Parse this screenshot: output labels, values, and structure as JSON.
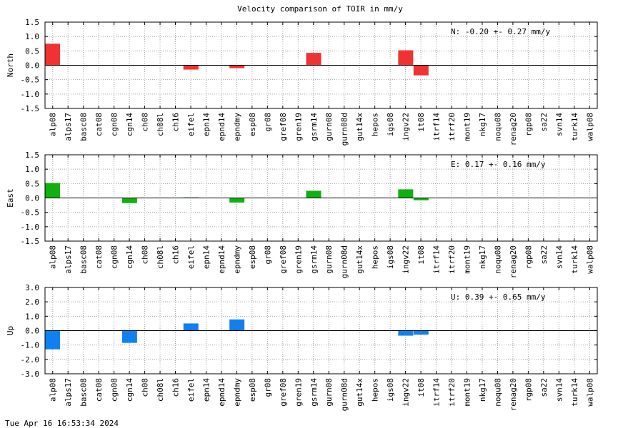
{
  "title": "Velocity comparison of TOIR in mm/y",
  "footer": "Tue Apr 16 16:53:34 2024",
  "colors": {
    "north": "#f03232",
    "east": "#10b010",
    "up": "#1080f0"
  },
  "chart_data": [
    {
      "type": "bar",
      "ylabel": "North",
      "ylim": [
        -1.5,
        1.5
      ],
      "yticks": [
        "1.5",
        "1.0",
        "0.5",
        "0.0",
        "-0.5",
        "-1.0",
        "-1.5"
      ],
      "ytick_values": [
        1.5,
        1.0,
        0.5,
        0.0,
        -0.5,
        -1.0,
        -1.5
      ],
      "stat": "N:  -0.20 +-  0.27 mm/y",
      "grid": true,
      "categories": [
        "alp08",
        "alps17",
        "basc08",
        "cat08",
        "cgn08",
        "cgn14",
        "ch08",
        "ch08l",
        "ch16",
        "eifel",
        "epn14",
        "epnd14",
        "epndmy",
        "esp08",
        "gr08",
        "gref08",
        "gren19",
        "gsrm14",
        "gurn08",
        "gurn08d",
        "gut14x",
        "hepos",
        "igs08",
        "ingv22",
        "it08",
        "itrf14",
        "itrf20",
        "mont19",
        "nkg17",
        "noqu08",
        "renag20",
        "rgp08",
        "sa22",
        "svn14",
        "turk14",
        "walp08"
      ],
      "values": [
        0.75,
        0,
        0,
        0,
        0,
        0,
        0,
        0,
        0,
        -0.15,
        0,
        0,
        -0.1,
        0,
        0,
        0,
        0,
        0.43,
        0,
        0,
        0,
        0,
        0,
        0.52,
        -0.35,
        0,
        0,
        0,
        0,
        0,
        0,
        0,
        0,
        0,
        0,
        0
      ]
    },
    {
      "type": "bar",
      "ylabel": "East",
      "ylim": [
        -1.5,
        1.5
      ],
      "yticks": [
        "1.5",
        "1.0",
        "0.5",
        "0.0",
        "-0.5",
        "-1.0",
        "-1.5"
      ],
      "ytick_values": [
        1.5,
        1.0,
        0.5,
        0.0,
        -0.5,
        -1.0,
        -1.5
      ],
      "stat": "E:   0.17 +-  0.16 mm/y",
      "grid": true,
      "categories": [
        "alp08",
        "alps17",
        "basc08",
        "cat08",
        "cgn08",
        "cgn14",
        "ch08",
        "ch08l",
        "ch16",
        "eifel",
        "epn14",
        "epnd14",
        "epndmy",
        "esp08",
        "gr08",
        "gref08",
        "gren19",
        "gsrm14",
        "gurn08",
        "gurn08d",
        "gut14x",
        "hepos",
        "igs08",
        "ingv22",
        "it08",
        "itrf14",
        "itrf20",
        "mont19",
        "nkg17",
        "noqu08",
        "renag20",
        "rgp08",
        "sa22",
        "svn14",
        "turk14",
        "walp08"
      ],
      "values": [
        0.52,
        0,
        0,
        0,
        0,
        -0.18,
        0,
        0,
        0,
        0.02,
        0,
        0,
        -0.16,
        0,
        0,
        0,
        0,
        0.25,
        0,
        0,
        0,
        0,
        0,
        0.3,
        -0.08,
        0,
        0,
        0,
        0,
        0,
        0,
        0,
        0,
        0,
        0,
        0
      ]
    },
    {
      "type": "bar",
      "ylabel": "Up",
      "ylim": [
        -3.0,
        3.0
      ],
      "yticks": [
        "3.0",
        "2.0",
        "1.0",
        "0.0",
        "-1.0",
        "-2.0",
        "-3.0"
      ],
      "ytick_values": [
        3.0,
        2.0,
        1.0,
        0.0,
        -1.0,
        -2.0,
        -3.0
      ],
      "stat": "U:   0.39 +-  0.65 mm/y",
      "grid": true,
      "categories": [
        "alp08",
        "alps17",
        "basc08",
        "cat08",
        "cgn08",
        "cgn14",
        "ch08",
        "ch08l",
        "ch16",
        "eifel",
        "epn14",
        "epnd14",
        "epndmy",
        "esp08",
        "gr08",
        "gref08",
        "gren19",
        "gsrm14",
        "gurn08",
        "gurn08d",
        "gut14x",
        "hepos",
        "igs08",
        "ingv22",
        "it08",
        "itrf14",
        "itrf20",
        "mont19",
        "nkg17",
        "noqu08",
        "renag20",
        "rgp08",
        "sa22",
        "svn14",
        "turk14",
        "walp08"
      ],
      "values": [
        -1.3,
        0,
        0,
        0,
        0,
        -0.85,
        0,
        0,
        0,
        0.5,
        0,
        0,
        0.78,
        0,
        0,
        0,
        0,
        0,
        0,
        0,
        0,
        0,
        0,
        -0.35,
        -0.28,
        0,
        0,
        0,
        0,
        0,
        0,
        0,
        0,
        0,
        0,
        0
      ]
    }
  ]
}
